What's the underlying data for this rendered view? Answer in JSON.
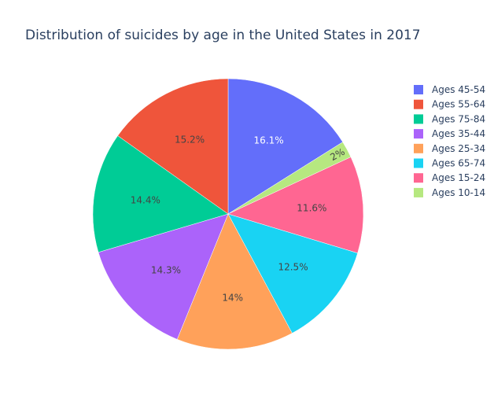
{
  "chart_data": {
    "type": "pie",
    "title": "Distribution of suicides by age in the United States in 2017",
    "slices": [
      {
        "label": "Ages 45-54",
        "value": 16.1,
        "text": "16.1%",
        "color": "#636efa",
        "text_color": "#ffffff"
      },
      {
        "label": "Ages 10-14",
        "value": 2.0,
        "text": "2%",
        "color": "#b6e880",
        "text_color": "#444444"
      },
      {
        "label": "Ages 15-24",
        "value": 11.6,
        "text": "11.6%",
        "color": "#ff6692",
        "text_color": "#444444"
      },
      {
        "label": "Ages 65-74",
        "value": 12.5,
        "text": "12.5%",
        "color": "#19d3f3",
        "text_color": "#444444"
      },
      {
        "label": "Ages 25-34",
        "value": 14.0,
        "text": "14%",
        "color": "#ffa15a",
        "text_color": "#444444"
      },
      {
        "label": "Ages 35-44",
        "value": 14.3,
        "text": "14.3%",
        "color": "#ab63fa",
        "text_color": "#444444"
      },
      {
        "label": "Ages 75-84",
        "value": 14.4,
        "text": "14.4%",
        "color": "#00cc96",
        "text_color": "#444444"
      },
      {
        "label": "Ages 55-64",
        "value": 15.2,
        "text": "15.2%",
        "color": "#ef553b",
        "text_color": "#444444"
      }
    ],
    "legend": [
      {
        "label": "Ages 45-54",
        "color": "#636efa"
      },
      {
        "label": "Ages 55-64",
        "color": "#ef553b"
      },
      {
        "label": "Ages 75-84",
        "color": "#00cc96"
      },
      {
        "label": "Ages 35-44",
        "color": "#ab63fa"
      },
      {
        "label": "Ages 25-34",
        "color": "#ffa15a"
      },
      {
        "label": "Ages 65-74",
        "color": "#19d3f3"
      },
      {
        "label": "Ages 15-24",
        "color": "#ff6692"
      },
      {
        "label": "Ages 10-14",
        "color": "#b6e880"
      }
    ],
    "legend_position": "right",
    "direction": "clockwise",
    "start": "top"
  }
}
